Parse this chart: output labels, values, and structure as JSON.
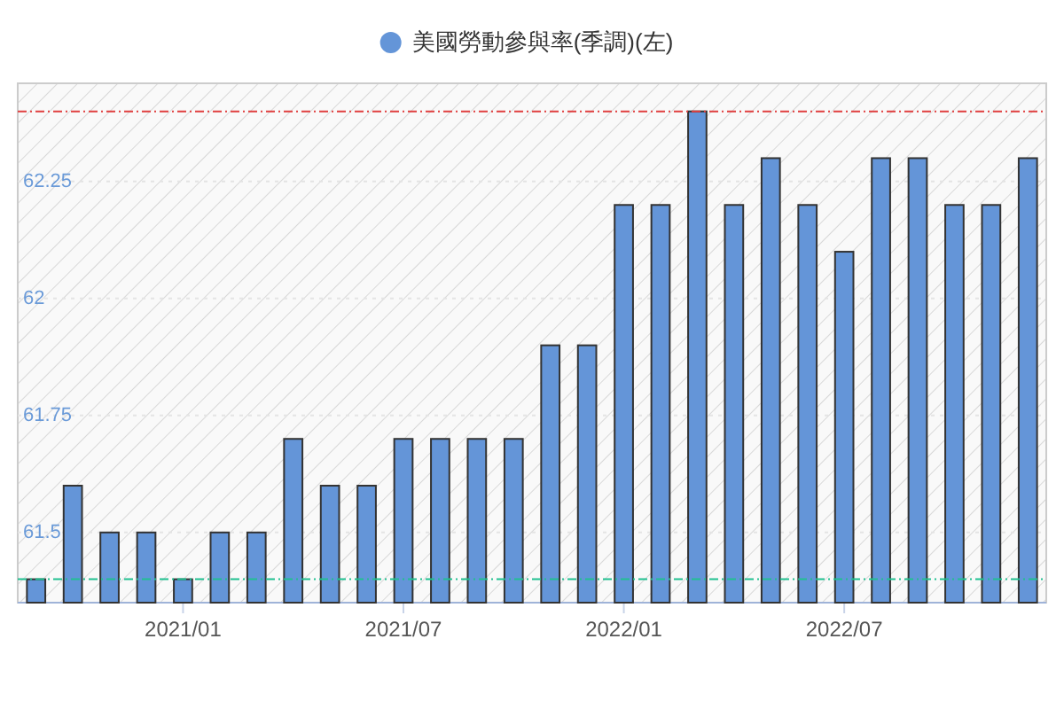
{
  "chart_data": {
    "type": "bar",
    "categories": [
      null,
      null,
      null,
      null,
      "2021/01",
      null,
      null,
      null,
      null,
      null,
      "2021/07",
      null,
      null,
      null,
      null,
      null,
      "2022/01",
      null,
      null,
      null,
      null,
      null,
      "2022/07",
      null,
      null,
      null,
      null,
      null
    ],
    "series": [
      {
        "name": "美國勞動參與率(季調)(左)",
        "color": "#6495d8",
        "values": [
          61.4,
          61.6,
          61.5,
          61.5,
          61.4,
          61.5,
          61.5,
          61.7,
          61.6,
          61.6,
          61.7,
          61.7,
          61.7,
          61.7,
          61.9,
          61.9,
          62.2,
          62.2,
          62.4,
          62.2,
          62.3,
          62.2,
          62.1,
          62.3,
          62.3,
          62.2,
          62.2,
          62.3
        ]
      }
    ],
    "ylim": [
      61.35,
      62.46
    ],
    "yticks": [
      61.5,
      61.75,
      62,
      62.25
    ],
    "ref_lines": [
      {
        "axis": "y",
        "value": 62.4,
        "color": "#e04040",
        "line_style": "dashdot"
      },
      {
        "axis": "y",
        "value": 61.4,
        "color": "#20c090",
        "line_style": "dashdot"
      }
    ],
    "grid": "y",
    "legend": "top"
  }
}
